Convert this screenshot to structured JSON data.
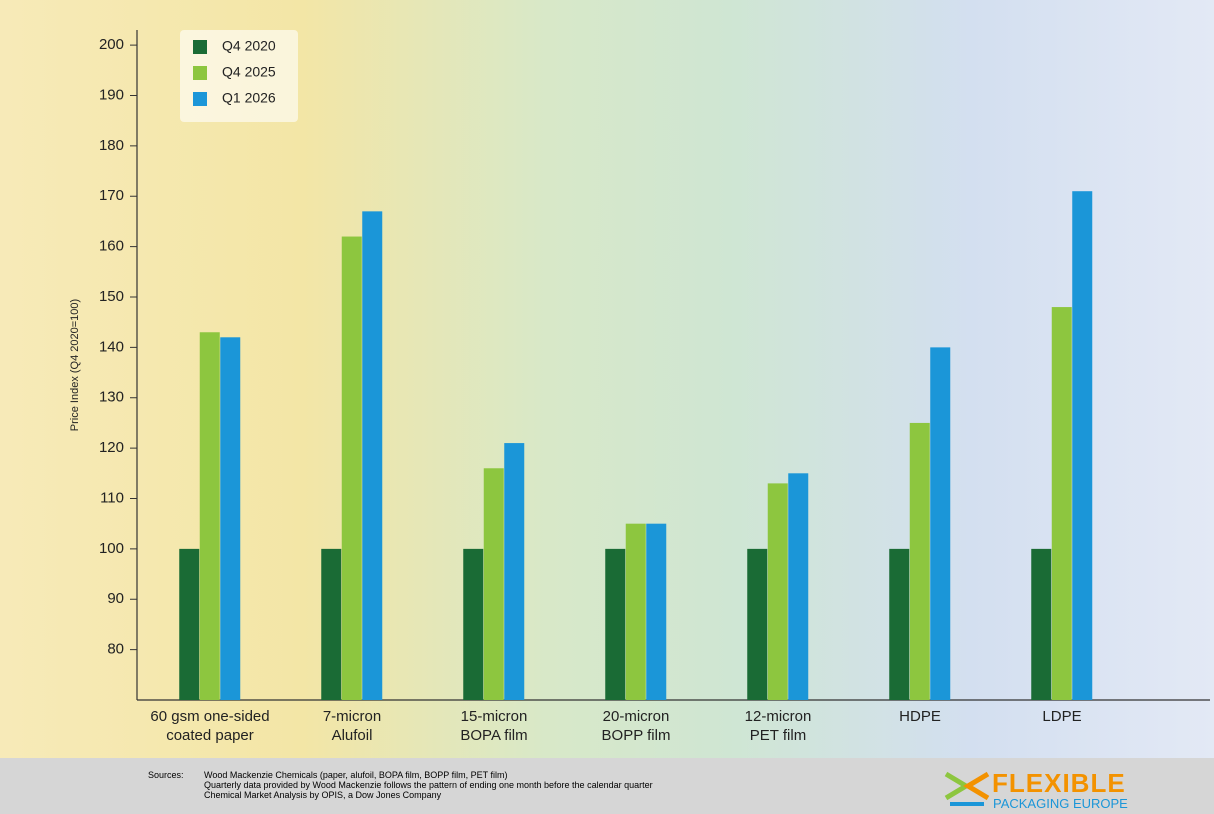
{
  "chart_data": {
    "type": "bar",
    "y_label": "Price Index (Q4 2020=100)",
    "categories": [
      "60 gsm one-sided\ncoated paper",
      "7-micron\nAlufoil",
      "15-micron\nBOPA film",
      "20-micron\nBOPP film",
      "12-micron\nPET film",
      "HDPE",
      "LDPE"
    ],
    "series": [
      {
        "name": "Q4 2020",
        "color": "#1a6b35",
        "values": [
          100,
          100,
          100,
          100,
          100,
          100,
          100
        ]
      },
      {
        "name": "Q4 2025",
        "color": "#8dc63f",
        "values": [
          143,
          162,
          116,
          105,
          113,
          125,
          148
        ]
      },
      {
        "name": "Q1 2026",
        "color": "#1b96d8",
        "values": [
          142,
          167,
          121,
          105,
          115,
          140,
          171
        ]
      }
    ],
    "ylim": [
      70,
      203
    ],
    "yticks": [
      80,
      90,
      100,
      110,
      120,
      130,
      140,
      150,
      160,
      170,
      180,
      190,
      200
    ],
    "grid": false,
    "legend": "top-left"
  },
  "footer": {
    "sources_label": "Sources:",
    "sources": [
      "Wood Mackenzie Chemicals (paper, alufoil, BOPA film, BOPP film, PET film)",
      "Quarterly data provided by Wood Mackenzie follows the pattern of ending one month before the calendar quarter",
      "Chemical Market Analysis by OPIS, a Dow Jones Company"
    ],
    "logo_top": "FLEXIBLE",
    "logo_bottom": "PACKAGING EUROPE"
  }
}
